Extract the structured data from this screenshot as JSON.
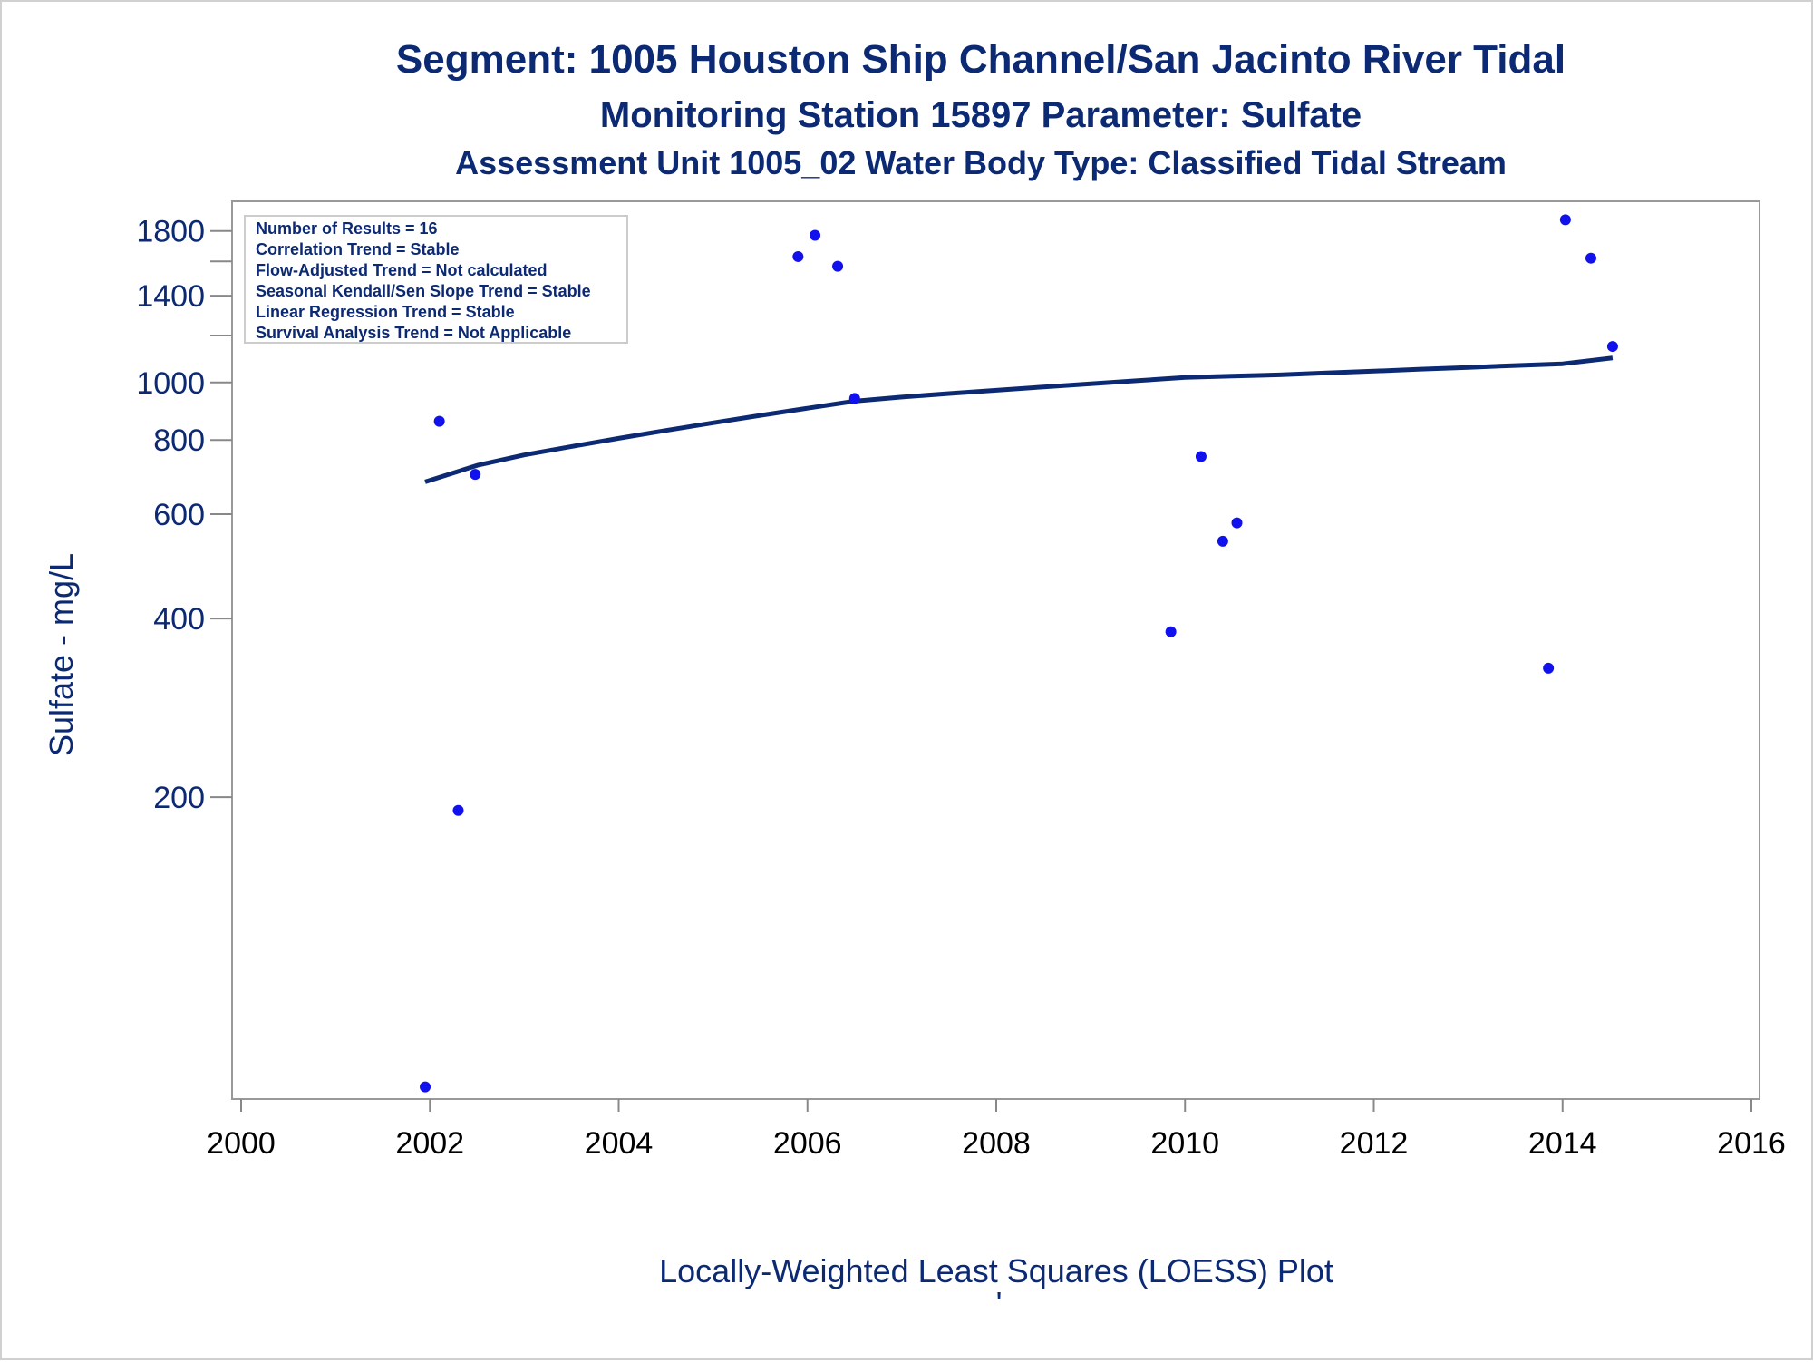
{
  "chart_data": {
    "type": "scatter",
    "title": "Segment: 1005  Houston Ship Channel/San Jacinto River Tidal",
    "subtitle": "Monitoring Station 15897 Parameter: Sulfate",
    "subtitle2": "Assessment Unit 1005_02   Water Body Type: Classified Tidal Stream",
    "xlabel": "",
    "ylabel": "Sulfate - mg/L",
    "footnote": "Locally-Weighted Least Squares (LOESS) Plot",
    "footnote_mark": "'",
    "y_scale": "log",
    "xlim": [
      2000,
      2016
    ],
    "ylim": [
      62,
      1950
    ],
    "x_ticks": [
      2000,
      2002,
      2004,
      2006,
      2008,
      2010,
      2012,
      2014,
      2016
    ],
    "y_ticks": [
      200,
      400,
      600,
      800,
      1000,
      1400,
      1800
    ],
    "y_minor_ticks": [
      1200,
      1600
    ],
    "grid": false,
    "legend_placement": "top-left",
    "stats_box": [
      "Number of Results = 16",
      "Correlation Trend = Stable",
      "Flow-Adjusted Trend = Not calculated",
      "Seasonal Kendall/Sen Slope Trend = Stable",
      "Linear Regression Trend = Stable",
      "Survival Analysis Trend = Not Applicable"
    ],
    "series": [
      {
        "kind": "points",
        "x": [
          2001.95,
          2002.1,
          2002.3,
          2002.48,
          2005.9,
          2006.08,
          2006.32,
          2006.5,
          2009.85,
          2010.17,
          2010.4,
          2010.55,
          2013.85,
          2014.03,
          2014.3,
          2014.53
        ],
        "y": [
          65,
          860,
          190,
          700,
          1630,
          1770,
          1570,
          940,
          380,
          750,
          540,
          580,
          330,
          1880,
          1620,
          1150
        ]
      },
      {
        "kind": "loess",
        "x": [
          2001.95,
          2002.5,
          2003,
          2003.5,
          2004,
          2004.5,
          2005,
          2005.5,
          2006,
          2006.5,
          2007,
          2007.5,
          2008,
          2008.5,
          2009,
          2009.5,
          2010,
          2010.5,
          2011,
          2011.5,
          2012,
          2012.5,
          2013,
          2013.5,
          2014,
          2014.53
        ],
        "y": [
          680,
          725,
          755,
          780,
          805,
          830,
          855,
          880,
          905,
          930,
          945,
          958,
          970,
          983,
          995,
          1007,
          1020,
          1025,
          1030,
          1038,
          1045,
          1053,
          1060,
          1068,
          1075,
          1100
        ]
      }
    ],
    "colors": {
      "text": "#0c2a74",
      "points": "#1111ee",
      "line": "#0c2a74",
      "axis": "#888888",
      "tick_label_y": "#0c2a74",
      "tick_label_x": "#000000",
      "stats_border": "#cccccc"
    }
  }
}
